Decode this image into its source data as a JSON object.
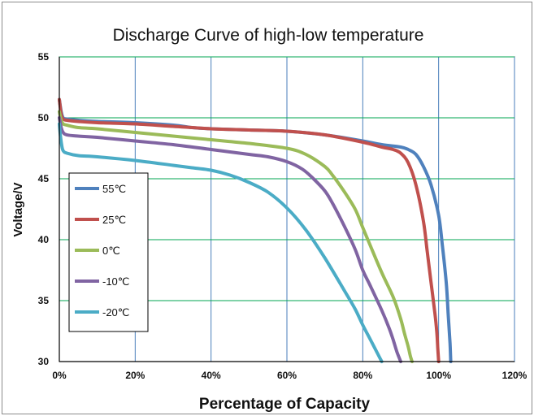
{
  "chart_data": {
    "type": "line",
    "title": "Discharge Curve of high-low temperature",
    "xlabel": "Percentage of Capacity",
    "ylabel": "Voltage/V",
    "xlim": [
      0,
      120
    ],
    "ylim": [
      30,
      55
    ],
    "x_ticks": [
      "0%",
      "20%",
      "40%",
      "60%",
      "80%",
      "100%",
      "120%"
    ],
    "x_tick_values": [
      0,
      20,
      40,
      60,
      80,
      100,
      120
    ],
    "y_ticks": [
      "30",
      "35",
      "40",
      "45",
      "50",
      "55"
    ],
    "y_tick_values": [
      30,
      35,
      40,
      45,
      50,
      55
    ],
    "grid": true,
    "legend_position": "left",
    "series": [
      {
        "name": "55℃",
        "color": "#4F81BD",
        "x": [
          0,
          0.5,
          1,
          2,
          5,
          10,
          20,
          30,
          35,
          40,
          50,
          60,
          70,
          80,
          85,
          90,
          92,
          94,
          96,
          98,
          100,
          101,
          102,
          102.5,
          103,
          103.2
        ],
        "y": [
          51.5,
          50.5,
          50.0,
          49.9,
          49.8,
          49.7,
          49.6,
          49.4,
          49.2,
          49.1,
          49.0,
          48.9,
          48.6,
          48.1,
          47.8,
          47.6,
          47.4,
          47.0,
          46.0,
          44.5,
          42.0,
          39.5,
          36.5,
          34.0,
          31.5,
          30.0
        ]
      },
      {
        "name": "25℃",
        "color": "#C0504D",
        "x": [
          0,
          0.5,
          1,
          2,
          5,
          10,
          20,
          30,
          40,
          50,
          60,
          70,
          80,
          85,
          88,
          90,
          92,
          94,
          96,
          97,
          98,
          99,
          99.5,
          99.8,
          100
        ],
        "y": [
          51.5,
          50.3,
          49.9,
          49.8,
          49.7,
          49.6,
          49.5,
          49.3,
          49.1,
          49.0,
          48.9,
          48.6,
          48.0,
          47.6,
          47.4,
          47.1,
          46.3,
          44.5,
          41.5,
          39.0,
          36.5,
          34.0,
          32.5,
          31.0,
          30.0
        ]
      },
      {
        "name": "0℃",
        "color": "#9BBB59",
        "x": [
          0,
          0.5,
          1,
          2,
          5,
          10,
          20,
          30,
          40,
          50,
          60,
          65,
          70,
          72,
          75,
          78,
          80,
          82,
          85,
          88,
          90,
          91,
          92,
          92.5,
          93
        ],
        "y": [
          50.5,
          49.8,
          49.5,
          49.4,
          49.2,
          49.1,
          48.8,
          48.5,
          48.2,
          47.9,
          47.5,
          47.0,
          46.0,
          45.3,
          44.0,
          42.5,
          41.0,
          39.5,
          37.3,
          35.3,
          33.5,
          32.3,
          31.2,
          30.5,
          30.0
        ]
      },
      {
        "name": "-10℃",
        "color": "#8064A2",
        "x": [
          0,
          0.5,
          1,
          2,
          5,
          10,
          20,
          30,
          40,
          50,
          55,
          60,
          64,
          67,
          70,
          72,
          75,
          78,
          80,
          82,
          85,
          87,
          88,
          89,
          90
        ],
        "y": [
          50.0,
          49.2,
          48.8,
          48.6,
          48.5,
          48.4,
          48.1,
          47.8,
          47.4,
          47.0,
          46.8,
          46.4,
          45.8,
          45.0,
          44.0,
          43.0,
          41.2,
          39.2,
          37.5,
          36.2,
          34.2,
          32.7,
          31.8,
          30.8,
          30.0
        ]
      },
      {
        "name": "-20℃",
        "color": "#4BACC6",
        "x": [
          0,
          0.3,
          0.6,
          1,
          2,
          5,
          10,
          20,
          30,
          35,
          40,
          45,
          50,
          55,
          60,
          65,
          70,
          75,
          78,
          80,
          82,
          84,
          85
        ],
        "y": [
          49.5,
          48.5,
          47.8,
          47.3,
          47.1,
          46.9,
          46.8,
          46.5,
          46.1,
          45.9,
          45.7,
          45.3,
          44.7,
          43.9,
          42.6,
          40.8,
          38.5,
          35.9,
          34.3,
          33.0,
          31.8,
          30.6,
          30.0
        ]
      }
    ]
  }
}
